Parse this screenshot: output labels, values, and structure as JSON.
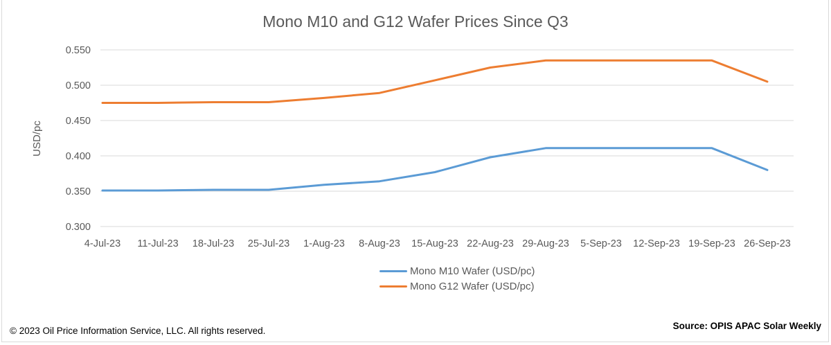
{
  "chart_data": {
    "type": "line",
    "title": "Mono M10 and G12 Wafer Prices Since Q3",
    "xlabel": "",
    "ylabel": "USD/pc",
    "ylim": [
      0.3,
      0.55
    ],
    "yticks": [
      "0.300",
      "0.350",
      "0.400",
      "0.450",
      "0.500",
      "0.550"
    ],
    "ytick_values": [
      0.3,
      0.35,
      0.4,
      0.45,
      0.5,
      0.55
    ],
    "grid": true,
    "legend_position": "bottom",
    "categories": [
      "4-Jul-23",
      "11-Jul-23",
      "18-Jul-23",
      "25-Jul-23",
      "1-Aug-23",
      "8-Aug-23",
      "15-Aug-23",
      "22-Aug-23",
      "29-Aug-23",
      "5-Sep-23",
      "12-Sep-23",
      "19-Sep-23",
      "26-Sep-23"
    ],
    "series": [
      {
        "name": "Mono M10 Wafer (USD/pc)",
        "color": "#5b9bd5",
        "values": [
          0.351,
          0.351,
          0.352,
          0.352,
          0.359,
          0.364,
          0.377,
          0.398,
          0.411,
          0.411,
          0.411,
          0.411,
          0.38
        ]
      },
      {
        "name": "Mono G12 Wafer (USD/pc)",
        "color": "#ed7d31",
        "values": [
          0.475,
          0.475,
          0.476,
          0.476,
          0.482,
          0.489,
          0.507,
          0.525,
          0.535,
          0.535,
          0.535,
          0.535,
          0.505
        ]
      }
    ]
  },
  "footer": {
    "copyright": "© 2023 Oil Price Information Service, LLC. All rights reserved.",
    "source": "Source: OPIS APAC Solar Weekly"
  }
}
